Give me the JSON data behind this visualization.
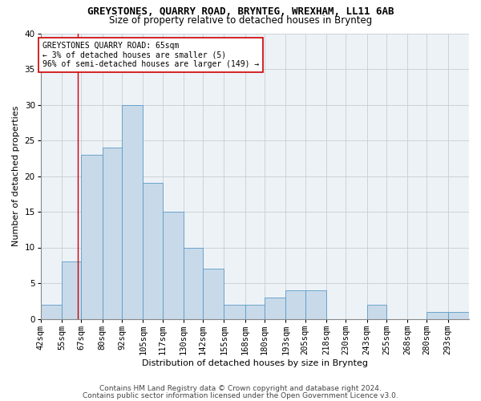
{
  "title": "GREYSTONES, QUARRY ROAD, BRYNTEG, WREXHAM, LL11 6AB",
  "subtitle": "Size of property relative to detached houses in Brynteg",
  "xlabel": "Distribution of detached houses by size in Brynteg",
  "ylabel": "Number of detached properties",
  "footnote1": "Contains HM Land Registry data © Crown copyright and database right 2024.",
  "footnote2": "Contains public sector information licensed under the Open Government Licence v3.0.",
  "bin_labels": [
    "42sqm",
    "55sqm",
    "67sqm",
    "80sqm",
    "92sqm",
    "105sqm",
    "117sqm",
    "130sqm",
    "142sqm",
    "155sqm",
    "168sqm",
    "180sqm",
    "193sqm",
    "205sqm",
    "218sqm",
    "230sqm",
    "243sqm",
    "255sqm",
    "268sqm",
    "280sqm",
    "293sqm"
  ],
  "bin_edges": [
    42,
    55,
    67,
    80,
    92,
    105,
    117,
    130,
    142,
    155,
    168,
    180,
    193,
    205,
    218,
    230,
    243,
    255,
    268,
    280,
    293,
    306
  ],
  "bar_heights": [
    2,
    8,
    23,
    24,
    30,
    19,
    15,
    10,
    7,
    2,
    2,
    3,
    4,
    4,
    0,
    0,
    2,
    0,
    0,
    1,
    1
  ],
  "bar_color": "#c8daea",
  "bar_edge_color": "#5a9ac5",
  "red_line_x": 65,
  "annotation_text": "GREYSTONES QUARRY ROAD: 65sqm\n← 3% of detached houses are smaller (5)\n96% of semi-detached houses are larger (149) →",
  "annotation_box_color": "#ffffff",
  "annotation_box_edge": "#cc0000",
  "ylim": [
    0,
    40
  ],
  "yticks": [
    0,
    5,
    10,
    15,
    20,
    25,
    30,
    35,
    40
  ],
  "grid_color": "#c8cdd2",
  "bg_color": "#edf2f7",
  "title_fontsize": 9,
  "subtitle_fontsize": 8.5,
  "axis_label_fontsize": 8,
  "tick_fontsize": 7.5,
  "annotation_fontsize": 7,
  "footnote_fontsize": 6.5
}
